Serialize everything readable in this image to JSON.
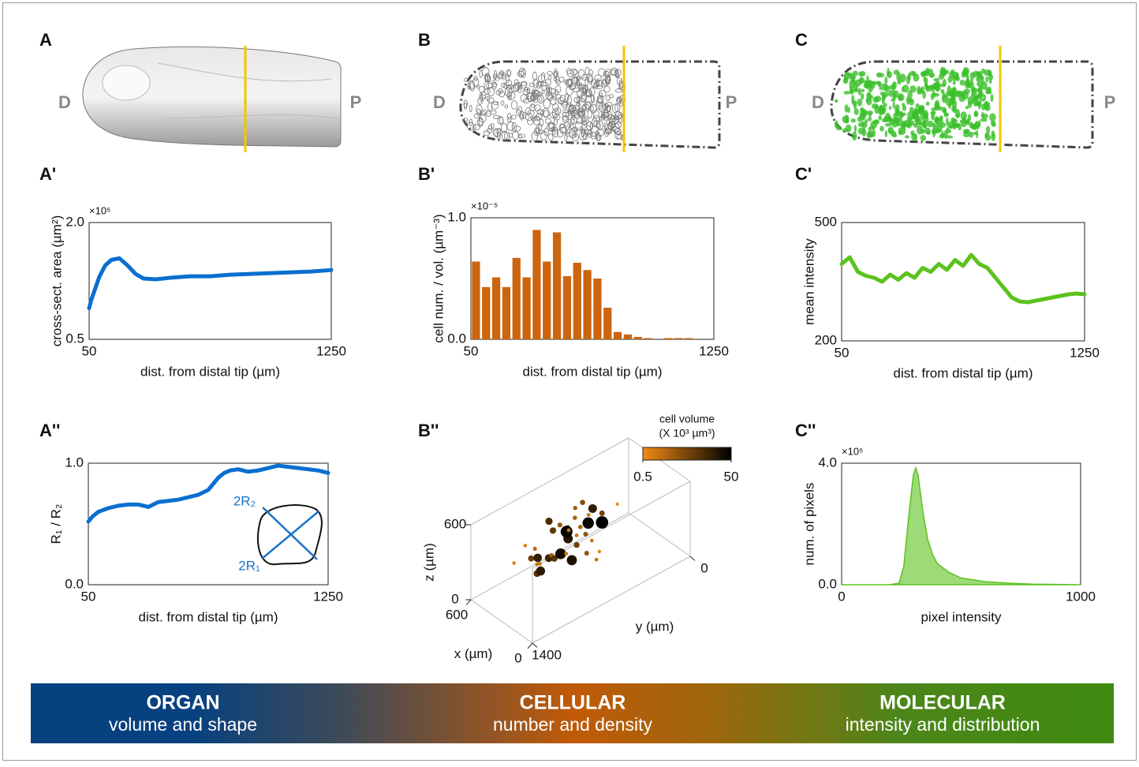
{
  "panel_labels": [
    "A",
    "B",
    "C",
    "A'",
    "B'",
    "C'",
    "A''",
    "B''",
    "C''"
  ],
  "images": {
    "A": {
      "left": "D",
      "right": "P"
    },
    "B": {
      "left": "D",
      "right": "P"
    },
    "C": {
      "left": "D",
      "right": "P"
    }
  },
  "banner": [
    {
      "title": "ORGAN",
      "subtitle": "volume and shape"
    },
    {
      "title": "CELLULAR",
      "subtitle": "number and density"
    },
    {
      "title": "MOLECULAR",
      "subtitle": "intensity and distribution"
    }
  ],
  "chart_data": [
    {
      "type": "line",
      "color": "#0a6fd0",
      "xlabel": "dist. from distal tip (µm)",
      "ylabel": "cross-sect. area (µm²)",
      "exponent_label": "×10⁵",
      "x": [
        50,
        60,
        80,
        100,
        130,
        160,
        200,
        240,
        280,
        320,
        380,
        450,
        550,
        650,
        750,
        850,
        950,
        1050,
        1150,
        1250
      ],
      "values": [
        0.9,
        1.0,
        1.15,
        1.3,
        1.45,
        1.52,
        1.54,
        1.45,
        1.34,
        1.28,
        1.27,
        1.29,
        1.31,
        1.31,
        1.33,
        1.34,
        1.35,
        1.36,
        1.37,
        1.39
      ],
      "xlim": [
        50,
        1250
      ],
      "xticks": [
        50,
        1250
      ],
      "ylim": [
        0.5,
        2
      ],
      "yticks": [
        0.5,
        {
          "value": 2,
          "label": "2.0"
        }
      ]
    },
    {
      "type": "histogram",
      "color": "#cc650f",
      "xlabel": "dist. from distal tip (µm)",
      "ylabel": "cell num. / vol. (µm⁻³)",
      "exponent_label": "×10⁻⁵",
      "bins": [
        50,
        100,
        150,
        200,
        250,
        300,
        350,
        400,
        450,
        500,
        550,
        600,
        650,
        700,
        750,
        800,
        850,
        900,
        950,
        1000,
        1050,
        1100,
        1150,
        1200,
        1250
      ],
      "values": [
        0.64,
        0.43,
        0.51,
        0.43,
        0.67,
        0.51,
        0.9,
        0.64,
        0.88,
        0.52,
        0.63,
        0.57,
        0.5,
        0.26,
        0.06,
        0.04,
        0.02,
        0.01,
        0,
        0.01,
        0.01,
        0.01,
        0,
        0
      ],
      "xlim": [
        50,
        1250
      ],
      "xticks": [
        50,
        1250
      ],
      "ylim": [
        0,
        1
      ],
      "yticks": [
        {
          "value": 0,
          "label": "0.0"
        },
        {
          "value": 1,
          "label": "1.0"
        }
      ]
    },
    {
      "type": "line",
      "color": "#5cc21e",
      "xlabel": "dist. from distal tip (µm)",
      "ylabel": "mean intensity",
      "x": [
        50,
        90,
        130,
        170,
        210,
        250,
        290,
        330,
        370,
        410,
        450,
        490,
        530,
        570,
        610,
        650,
        690,
        730,
        770,
        810,
        850,
        890,
        930,
        970,
        1010,
        1050,
        1090,
        1130,
        1170,
        1210,
        1250
      ],
      "values": [
        395,
        412,
        375,
        365,
        360,
        350,
        368,
        355,
        372,
        360,
        385,
        375,
        395,
        380,
        405,
        390,
        418,
        395,
        385,
        360,
        335,
        310,
        300,
        298,
        302,
        306,
        310,
        314,
        318,
        320,
        318
      ],
      "xlim": [
        50,
        1250
      ],
      "xticks": [
        50,
        1250
      ],
      "ylim": [
        200,
        500
      ],
      "yticks": [
        200,
        500
      ]
    },
    {
      "type": "line",
      "color": "#0a6fd0",
      "xlabel": "dist. from distal tip (µm)",
      "ylabel": "R₁ / R₂",
      "annotations": [
        "2R₂",
        "2R₁"
      ],
      "x": [
        50,
        70,
        100,
        150,
        200,
        250,
        300,
        350,
        400,
        450,
        500,
        550,
        600,
        650,
        700,
        730,
        760,
        800,
        850,
        900,
        950,
        1000,
        1050,
        1100,
        1150,
        1200,
        1250
      ],
      "values": [
        0.52,
        0.56,
        0.6,
        0.63,
        0.65,
        0.66,
        0.66,
        0.64,
        0.68,
        0.69,
        0.7,
        0.72,
        0.74,
        0.78,
        0.88,
        0.92,
        0.94,
        0.95,
        0.93,
        0.94,
        0.96,
        0.98,
        0.97,
        0.96,
        0.95,
        0.94,
        0.92
      ],
      "xlim": [
        50,
        1250
      ],
      "xticks": [
        50,
        1250
      ],
      "ylim": [
        0,
        1
      ],
      "yticks": [
        {
          "value": 0,
          "label": "0.0"
        },
        {
          "value": 1,
          "label": "1.0"
        }
      ]
    },
    {
      "type": "scatter3d",
      "xlabel": "x (µm)",
      "ylabel": "y (µm)",
      "zlabel": "z (µm)",
      "colorbar": {
        "title": [
          "cell volume",
          "(X 10³ µm³)"
        ],
        "ticks": [
          0.5,
          50
        ],
        "colors": [
          "#f08a14",
          "#000000"
        ]
      },
      "xlim": [
        0,
        600
      ],
      "xticks": [
        600,
        0
      ],
      "ylim": [
        0,
        1400
      ],
      "yticks": [
        1400,
        0
      ],
      "zlim": [
        0,
        600
      ],
      "zticks": [
        0,
        600
      ],
      "x": [
        420,
        380,
        300,
        250,
        500,
        450,
        350,
        200,
        280,
        520,
        400,
        330,
        260,
        470,
        310,
        360,
        440,
        230,
        390,
        290,
        480,
        340,
        410,
        270,
        370,
        320,
        430,
        250,
        350,
        300,
        460,
        380,
        280,
        400,
        340,
        220,
        500,
        360,
        310,
        600
      ],
      "y": [
        400,
        520,
        600,
        700,
        450,
        800,
        900,
        650,
        1000,
        550,
        1100,
        750,
        850,
        950,
        500,
        680,
        620,
        1150,
        980,
        820,
        720,
        1050,
        880,
        560,
        760,
        940,
        1020,
        780,
        600,
        1080,
        660,
        860,
        720,
        1200,
        840,
        900,
        500,
        1000,
        620,
        100
      ],
      "z": [
        300,
        420,
        250,
        380,
        200,
        350,
        450,
        180,
        320,
        280,
        400,
        150,
        500,
        260,
        340,
        220,
        440,
        300,
        200,
        380,
        330,
        260,
        480,
        160,
        360,
        290,
        240,
        410,
        120,
        350,
        270,
        190,
        430,
        310,
        240,
        340,
        390,
        170,
        460,
        120
      ],
      "size": [
        5,
        20,
        1,
        3,
        40,
        2,
        8,
        1,
        15,
        2,
        0.8,
        30,
        4,
        1.5,
        50,
        6,
        2,
        10,
        1,
        25,
        3,
        1,
        12,
        0.6,
        45,
        2,
        7,
        1,
        3,
        18,
        1,
        9,
        2,
        0.7,
        35,
        1,
        4,
        22,
        1,
        0.5
      ]
    },
    {
      "type": "area",
      "color": "#5cc21e",
      "xlabel": "pixel intensity",
      "ylabel": "num. of pixels",
      "exponent_label": "×10⁵",
      "x": [
        0,
        200,
        240,
        260,
        280,
        300,
        310,
        320,
        340,
        360,
        380,
        400,
        450,
        500,
        600,
        700,
        800,
        1000
      ],
      "values": [
        0,
        0,
        0.05,
        0.6,
        2.2,
        3.6,
        3.85,
        3.6,
        2.4,
        1.5,
        1,
        0.7,
        0.4,
        0.22,
        0.1,
        0.05,
        0.02,
        0
      ],
      "xlim": [
        0,
        1000
      ],
      "xticks": [
        0,
        1000
      ],
      "ylim": [
        0,
        4
      ],
      "yticks": [
        {
          "value": 0,
          "label": "0.0"
        },
        {
          "value": 4,
          "label": "4.0"
        }
      ]
    }
  ]
}
